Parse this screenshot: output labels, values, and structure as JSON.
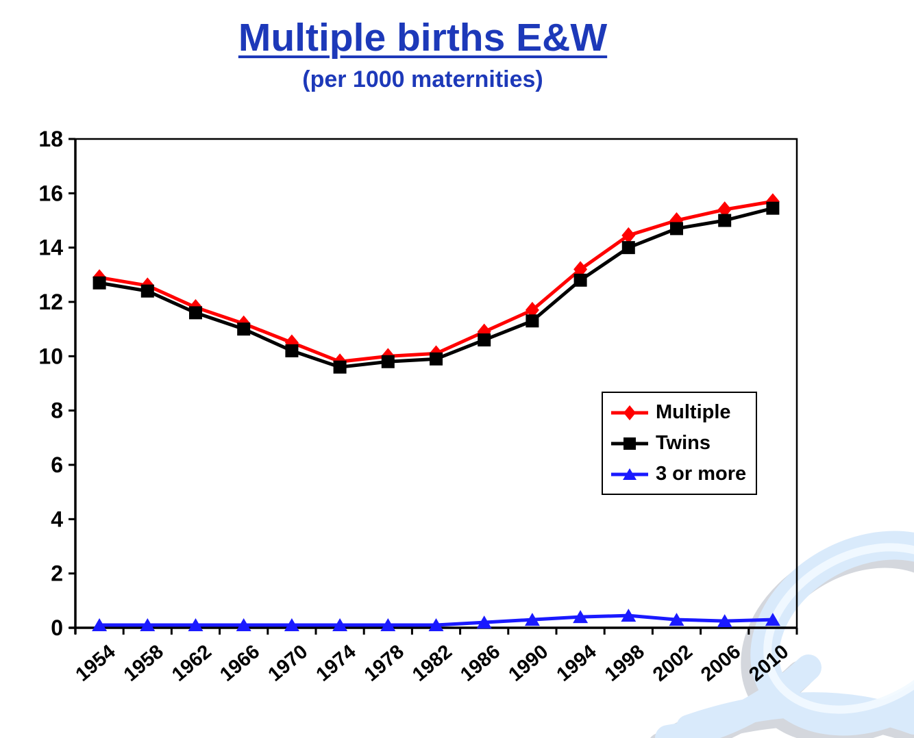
{
  "header": {
    "title_color": "#1d39b9"
  },
  "chart_data": {
    "type": "line",
    "title": "Multiple births E&W",
    "subtitle": "(per 1000 maternities)",
    "categories": [
      "1954",
      "1958",
      "1962",
      "1966",
      "1970",
      "1974",
      "1978",
      "1982",
      "1986",
      "1990",
      "1994",
      "1998",
      "2002",
      "2006",
      "2010"
    ],
    "x_label_rotation_deg": -40,
    "ylim": [
      0,
      18
    ],
    "ytick_interval": 2,
    "grid": false,
    "legend_position": "inside-middle-right",
    "legend_border": "#000000",
    "axis_color": "#000000",
    "series": [
      {
        "name": "Multiple",
        "color": "#ff0000",
        "marker": "diamond",
        "values": [
          12.9,
          12.6,
          11.8,
          11.2,
          10.5,
          9.8,
          10.0,
          10.1,
          10.9,
          11.7,
          13.2,
          14.45,
          15.0,
          15.4,
          15.7
        ]
      },
      {
        "name": "Twins",
        "color": "#000000",
        "marker": "square",
        "values": [
          12.7,
          12.4,
          11.6,
          11.0,
          10.2,
          9.6,
          9.8,
          9.9,
          10.6,
          11.3,
          12.8,
          14.0,
          14.7,
          15.0,
          15.45
        ]
      },
      {
        "name": "3 or more",
        "color": "#1a1aff",
        "marker": "triangle",
        "values": [
          0.1,
          0.1,
          0.1,
          0.1,
          0.1,
          0.1,
          0.1,
          0.1,
          0.2,
          0.3,
          0.4,
          0.45,
          0.3,
          0.25,
          0.3
        ]
      }
    ]
  },
  "watermark": {
    "icon": "glossy-swirl-logo",
    "body": "#d9eafb",
    "shadow": "#d4d7dd",
    "highlight": "#f2f9ff"
  }
}
